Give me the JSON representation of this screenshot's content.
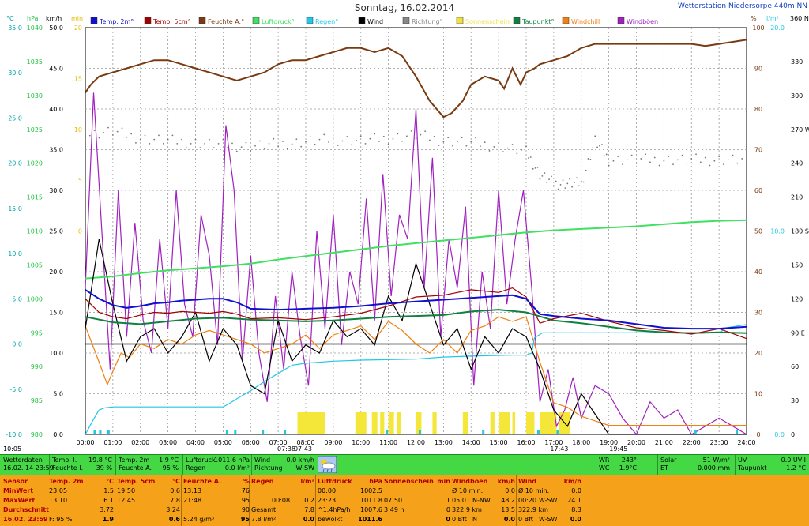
{
  "header": {
    "title": "Sonntag, 16.02.2014",
    "station": "Wetterstation Niedersorpe 440m NN",
    "time_left": "10:05"
  },
  "legend": [
    {
      "label": "Temp. 2m°",
      "color": "#1010d0"
    },
    {
      "label": "Temp. 5cm°",
      "color": "#a00000"
    },
    {
      "label": "Feuchte A.°",
      "color": "#7a3a10"
    },
    {
      "label": "Luftdruck°",
      "color": "#40e060"
    },
    {
      "label": "Regen°",
      "color": "#20c8e8"
    },
    {
      "label": "Wind",
      "color": "#000000"
    },
    {
      "label": "Richtung°",
      "color": "#888888"
    },
    {
      "label": "Sonnenschein",
      "color": "#f0e040"
    },
    {
      "label": "Taupunkt°",
      "color": "#108040"
    },
    {
      "label": "Windchill",
      "color": "#f08010"
    },
    {
      "label": "Windböen",
      "color": "#a020c0"
    }
  ],
  "axes": {
    "c": {
      "unit": "°C",
      "color": "#00a0a0",
      "ticks": [
        "35.0",
        "30.0",
        "25.0",
        "20.0",
        "15.0",
        "10.0",
        "5.0",
        "0.0",
        "-5.0",
        "-10.0"
      ]
    },
    "hpa": {
      "unit": "hPa",
      "color": "#20c040",
      "ticks": [
        "1040",
        "1035",
        "1030",
        "1025",
        "1020",
        "1015",
        "1010",
        "1005",
        "1000",
        "995",
        "990",
        "985",
        "980"
      ]
    },
    "kmh": {
      "unit": "km/h",
      "color": "#000000",
      "ticks": [
        "50.0",
        "45.0",
        "40.0",
        "35.0",
        "30.0",
        "25.0",
        "20.0",
        "15.0",
        "10.0",
        "5.0",
        "0.0"
      ]
    },
    "min": {
      "unit": "min",
      "color": "#e0c000",
      "ticks": [
        "20",
        "15",
        "10",
        "5",
        "0"
      ]
    },
    "pct": {
      "unit": "%",
      "color": "#7a3a10",
      "ticks": [
        "100",
        "90",
        "80",
        "70",
        "60",
        "50",
        "40",
        "30",
        "20",
        "10",
        "0"
      ]
    },
    "lm2": {
      "unit": "l/m²",
      "color": "#20c8e8",
      "ticks": [
        "20.0",
        "10.0",
        "0.0"
      ]
    },
    "deg": {
      "unit": "360 N",
      "color": "#000000",
      "ticks": [
        "360 N",
        "330",
        "300",
        "270 W",
        "240",
        "210",
        "180 S",
        "150",
        "120",
        "90 E",
        "60",
        "30",
        "0"
      ]
    },
    "x": {
      "ticks": [
        "00:00",
        "01:00",
        "02:00",
        "03:00",
        "04:00",
        "05:00",
        "06:00",
        "07:00",
        "08:00",
        "09:00",
        "10:00",
        "11:00",
        "12:00",
        "13:00",
        "14:00",
        "15:00",
        "16:00",
        "17:00",
        "18:00",
        "19:00",
        "20:00",
        "21:00",
        "22:00",
        "23:00",
        "24:00"
      ]
    },
    "sun_labels": [
      "07:38",
      "07:43",
      "17:43",
      "19:45"
    ]
  },
  "chart_data": {
    "type": "line",
    "title": "Sonntag, 16.02.2014",
    "x_unit": "hour",
    "xlim": [
      0,
      24
    ],
    "series": [
      {
        "name": "Feuchte A.",
        "unit": "%",
        "x": [
          0,
          0.2,
          0.5,
          1,
          1.5,
          2,
          2.5,
          3,
          3.5,
          4,
          4.5,
          5,
          5.5,
          6,
          6.5,
          7,
          7.5,
          8,
          8.5,
          9,
          9.5,
          10,
          10.5,
          11,
          11.5,
          12,
          12.5,
          13,
          13.3,
          13.7,
          14,
          14.5,
          15,
          15.2,
          15.5,
          15.8,
          16,
          16.3,
          16.5,
          17,
          17.5,
          18,
          18.5,
          19,
          20,
          21,
          22,
          22.5,
          23,
          23.5,
          24
        ],
        "y": [
          84,
          86,
          88,
          89,
          90,
          91,
          92,
          92,
          91,
          90,
          89,
          88,
          87,
          88,
          89,
          91,
          92,
          92,
          93,
          94,
          95,
          95,
          94,
          95,
          93,
          88,
          82,
          78,
          79,
          82,
          86,
          88,
          87,
          85,
          90,
          86,
          89,
          90,
          91,
          92,
          93,
          95,
          96,
          96,
          96,
          96,
          96,
          95.5,
          96,
          96.5,
          97
        ]
      },
      {
        "name": "Luftdruck",
        "unit": "hPa",
        "x": [
          0,
          1,
          2,
          3,
          4,
          5,
          6,
          7,
          8,
          9,
          10,
          11,
          12,
          13,
          14,
          15,
          16,
          17,
          18,
          19,
          20,
          21,
          22,
          23,
          24
        ],
        "y": [
          1003,
          1003.3,
          1003.8,
          1004.2,
          1004.5,
          1004.8,
          1005.2,
          1005.8,
          1006.3,
          1006.8,
          1007.3,
          1007.8,
          1008.2,
          1008.6,
          1009,
          1009.4,
          1009.8,
          1010.1,
          1010.3,
          1010.5,
          1010.7,
          1011,
          1011.3,
          1011.5,
          1011.6
        ]
      },
      {
        "name": "Temp. 2m",
        "unit": "°C",
        "x": [
          0,
          0.5,
          1,
          1.5,
          2,
          2.5,
          3,
          3.5,
          4,
          4.5,
          5,
          5.5,
          6,
          7,
          8,
          9,
          10,
          11,
          12,
          13,
          14,
          15,
          15.5,
          16,
          16.5,
          17,
          18,
          19,
          20,
          21,
          22,
          23,
          24
        ],
        "y": [
          6,
          5,
          4.3,
          4,
          4.2,
          4.5,
          4.6,
          4.8,
          4.9,
          5,
          5,
          4.6,
          3.9,
          3.8,
          3.9,
          4,
          4.2,
          4.5,
          4.7,
          4.9,
          5.1,
          5.3,
          5.4,
          5,
          3.3,
          3.1,
          2.8,
          2.6,
          2.2,
          1.8,
          1.7,
          1.7,
          1.9
        ]
      },
      {
        "name": "Temp. 5cm",
        "unit": "°C",
        "x": [
          0,
          0.5,
          1,
          1.5,
          2,
          2.5,
          3,
          3.5,
          4,
          4.5,
          5,
          5.5,
          6,
          7,
          8,
          9,
          10,
          11,
          12,
          13,
          14,
          15,
          15.5,
          16,
          16.5,
          17,
          18,
          19,
          20,
          21,
          22,
          23,
          24
        ],
        "y": [
          5,
          3.5,
          3,
          2.8,
          3.2,
          3.5,
          3.4,
          3.6,
          3.5,
          3.4,
          3.6,
          3.3,
          2.8,
          2.9,
          2.7,
          3,
          3.4,
          4.2,
          5.2,
          5.4,
          6,
          5.7,
          6.2,
          5.2,
          2.3,
          2.8,
          3.4,
          2.5,
          1.8,
          1.5,
          1.1,
          1.7,
          0.6
        ]
      },
      {
        "name": "Taupunkt",
        "unit": "°C",
        "x": [
          0,
          1,
          2,
          3,
          4,
          5,
          6,
          7,
          8,
          9,
          10,
          11,
          12,
          13,
          14,
          15,
          16,
          17,
          18,
          19,
          20,
          21,
          22,
          23,
          24
        ],
        "y": [
          3,
          2.4,
          2.2,
          2.5,
          2.8,
          2.9,
          2.7,
          2.6,
          2.5,
          2.6,
          2.8,
          3,
          3.1,
          3.2,
          3.6,
          3.8,
          3.5,
          2.6,
          2.3,
          1.9,
          1.5,
          1.3,
          1.2,
          1.3,
          1.2
        ]
      },
      {
        "name": "Windchill",
        "unit": "°C",
        "x": [
          0,
          0.5,
          0.8,
          1,
          1.3,
          1.6,
          2,
          2.5,
          3,
          3.5,
          4,
          4.5,
          5,
          5.5,
          6,
          6.5,
          7,
          7.5,
          8,
          8.5,
          9,
          9.5,
          10,
          10.5,
          11,
          11.5,
          12,
          12.5,
          13,
          13.5,
          14,
          14.5,
          15,
          15.5,
          16,
          16.5,
          17,
          17.5,
          18,
          19,
          20,
          21,
          22,
          23,
          24
        ],
        "y": [
          2,
          -2,
          -4.5,
          -3,
          -1,
          -1.5,
          0,
          -0.5,
          0.5,
          0,
          1,
          1.5,
          1,
          0.5,
          0,
          -1,
          -0.5,
          0,
          1,
          -0.5,
          1,
          1.5,
          2,
          0.5,
          2.5,
          1.5,
          0,
          -1,
          0.5,
          -1,
          1.5,
          2,
          3,
          2.5,
          3,
          -2,
          -6.5,
          -7,
          -8,
          -9,
          -9,
          -9,
          -9,
          -9,
          -9
        ]
      },
      {
        "name": "Regen",
        "unit": "l/m²",
        "x": [
          0,
          0.3,
          0.5,
          0.7,
          1,
          5,
          5.2,
          5.5,
          6,
          6.5,
          7,
          7.5,
          8,
          9,
          10,
          12,
          13,
          14,
          15.5,
          16,
          16.2,
          16.3,
          16.6,
          20,
          22,
          23,
          23.3,
          24
        ],
        "y": [
          0,
          1.5,
          2.4,
          2.6,
          2.7,
          2.7,
          3,
          3.5,
          4.3,
          5.2,
          6,
          6.8,
          7.0,
          7.2,
          7.3,
          7.4,
          7.6,
          7.7,
          7.8,
          7.8,
          8,
          9.5,
          10,
          10,
          10,
          10,
          10.5,
          10.8
        ]
      },
      {
        "name": "Wind",
        "unit": "km/h",
        "x": [
          0,
          0.5,
          1,
          1.5,
          2,
          2.5,
          3,
          3.5,
          4,
          4.5,
          5,
          5.5,
          6,
          6.5,
          7,
          7.5,
          8,
          8.5,
          9,
          9.5,
          10,
          10.5,
          11,
          11.5,
          12,
          12.5,
          13,
          13.5,
          14,
          14.5,
          15,
          15.5,
          16,
          16.5,
          17,
          17.5,
          18,
          19,
          20,
          21,
          22,
          23,
          24
        ],
        "y": [
          13,
          24,
          16,
          9,
          12,
          13,
          10,
          12,
          15,
          9,
          13,
          11,
          6,
          5,
          14,
          9,
          11,
          10,
          14,
          12,
          13,
          11,
          17,
          14,
          21,
          16,
          11,
          13,
          8,
          12,
          10,
          13,
          12,
          8,
          3,
          1,
          5,
          0,
          0,
          0,
          0,
          0,
          0
        ]
      },
      {
        "name": "Richtung",
        "unit": "°",
        "x": [
          0,
          1,
          2,
          3,
          4,
          5,
          6,
          7,
          8,
          9,
          10,
          11,
          12,
          13,
          14,
          15,
          16,
          16.5,
          17,
          17.5,
          18,
          18.5,
          19,
          20,
          21,
          22,
          23,
          24
        ],
        "y": [
          265,
          268,
          262,
          260,
          258,
          256,
          255,
          257,
          259,
          261,
          260,
          262,
          265,
          260,
          258,
          255,
          250,
          230,
          222,
          222,
          222,
          260,
          243,
          243,
          243,
          243,
          243,
          243
        ]
      },
      {
        "name": "Windböen",
        "unit": "km/h",
        "x": [
          0,
          0.3,
          0.6,
          0.9,
          1.2,
          1.5,
          1.8,
          2.1,
          2.4,
          2.7,
          3,
          3.3,
          3.6,
          3.9,
          4.2,
          4.5,
          4.8,
          5.1,
          5.4,
          5.7,
          6,
          6.3,
          6.6,
          6.9,
          7.2,
          7.5,
          7.8,
          8.1,
          8.4,
          8.7,
          9,
          9.3,
          9.6,
          9.9,
          10.2,
          10.5,
          10.8,
          11.1,
          11.4,
          11.7,
          12,
          12.3,
          12.6,
          12.9,
          13.2,
          13.5,
          13.8,
          14.1,
          14.4,
          14.7,
          15,
          15.3,
          15.6,
          15.9,
          16.2,
          16.5,
          16.8,
          17.1,
          17.4,
          17.7,
          18,
          18.5,
          19,
          19.5,
          20,
          20.5,
          21,
          21.5,
          22,
          22.5,
          23,
          23.5,
          24
        ],
        "y": [
          18,
          42,
          25,
          8,
          30,
          12,
          26,
          14,
          10,
          24,
          13,
          30,
          16,
          12,
          27,
          22,
          11,
          38,
          30,
          9,
          22,
          10,
          4,
          17,
          8,
          20,
          12,
          6,
          25,
          13,
          27,
          11,
          20,
          16,
          29,
          14,
          32,
          17,
          27,
          24,
          40,
          18,
          34,
          12,
          24,
          18,
          28,
          6,
          20,
          13,
          30,
          16,
          24,
          30,
          18,
          4,
          8,
          1,
          3,
          7,
          2,
          6,
          5,
          2,
          0,
          4,
          2,
          3,
          0,
          1,
          2,
          1,
          0
        ]
      }
    ],
    "sunshine_blocks": [
      [
        7.7,
        8.7
      ],
      [
        9.8,
        10.2
      ],
      [
        10.4,
        10.6
      ],
      [
        10.7,
        10.85
      ],
      [
        11,
        11.2
      ],
      [
        11.3,
        11.45
      ],
      [
        12,
        12.2
      ],
      [
        12.6,
        12.75
      ],
      [
        13.7,
        13.9
      ],
      [
        14.7,
        14.85
      ],
      [
        15,
        15.4
      ],
      [
        15.5,
        15.6
      ],
      [
        16,
        16.3
      ],
      [
        16.5,
        17.1
      ],
      [
        17.2,
        17.6
      ]
    ]
  },
  "current": {
    "title1": "Wetterdaten",
    "title2": "16.02. 14 23:59",
    "temp_i_label": "Temp. I.",
    "temp_i_val": "19.8 °C",
    "feuchte_i_label": "Feuchte I.",
    "feuchte_i_val": "39 %",
    "temp2m_label": "Temp. 2m",
    "temp2m_val": "1.9 °C",
    "feuchte_a_label": "Feuchte A.",
    "feuchte_a_val": "95 %",
    "luftdruck_label": "Luftdruck",
    "luftdruck_val": "1011.6 hPa",
    "regen_label": "Regen",
    "regen_val": "0.0 l/m²",
    "wind_label": "Wind",
    "wind_val": "0.0 km/h",
    "richtung_label": "Richtung",
    "richtung_val": "W-SW",
    "wr_label": "WR",
    "wr_val": "243°",
    "wc_label": "WC",
    "wc_val": "1.9°C",
    "solar_label": "Solar",
    "solar_val": "51 W/m²",
    "et_label": "ET",
    "et_val": "0.000 mm",
    "uv_label": "UV",
    "uv_val": "0.0 UV-I",
    "taupunkt_label": "Taupunkt",
    "taupunkt_val": "1.2 °C"
  },
  "stats": {
    "row_labels": [
      "Sensor",
      "MinWert",
      "MaxWert",
      "Durchschnitt",
      "16.02. 23:59"
    ],
    "temp2m": {
      "title": "Temp. 2m",
      "unit": "°C",
      "rows": [
        [
          "23:05",
          "1.5"
        ],
        [
          "13:10",
          "6.1"
        ],
        [
          "",
          "3.72"
        ],
        [
          "F: 95 %",
          "1.9"
        ]
      ]
    },
    "temp5cm": {
      "title": "Temp. 5cm",
      "unit": "°C",
      "rows": [
        [
          "19:50",
          "0.6"
        ],
        [
          "12:45",
          "7.8"
        ],
        [
          "",
          "3.24"
        ],
        [
          "",
          "0.6"
        ]
      ]
    },
    "feuchte": {
      "title": "Feuchte A.",
      "unit": "%",
      "rows": [
        [
          "13:13",
          "76"
        ],
        [
          "21:48",
          "95"
        ],
        [
          "",
          "90"
        ],
        [
          "5.24 g/m³",
          "95"
        ]
      ]
    },
    "regen": {
      "title": "Regen",
      "unit": "l/m²",
      "rows": [
        [
          "",
          "00:08",
          "0.2"
        ],
        [
          "Gesamt:",
          "",
          "7.8"
        ],
        [
          "7.8 l/m²",
          "",
          "0.0"
        ]
      ]
    },
    "luftdruck": {
      "title": "Luftdruck",
      "unit": "hPa",
      "rows": [
        [
          "00:00",
          "1002.5"
        ],
        [
          "23:23",
          "1011.8"
        ],
        [
          "^1.4hPa/h",
          "1007.6"
        ],
        [
          "bewölkt",
          "1011.6"
        ]
      ]
    },
    "sonne": {
      "title": "Sonnenschein",
      "unit": "min",
      "rows": [
        [
          "07:50",
          "1"
        ],
        [
          "3:49 h",
          "0"
        ],
        [
          "",
          "0"
        ]
      ]
    },
    "boeen": {
      "title": "Windböen",
      "unit": "km/h",
      "rows": [
        [
          "Ø 10 min.",
          "",
          "0.0"
        ],
        [
          "05:01",
          "N-NW",
          "48.2"
        ],
        [
          "322.9 km",
          "",
          "13.5"
        ],
        [
          "0 Bft",
          "N",
          "0.0"
        ]
      ]
    },
    "wind": {
      "title": "Wind",
      "unit": "km/h",
      "rows": [
        [
          "Ø 10 min.",
          "",
          "0.0"
        ],
        [
          "00:20",
          "W-SW",
          "24.1"
        ],
        [
          "322.9 km",
          "",
          "8.3"
        ],
        [
          "0 Bft",
          "W-SW",
          "0.0"
        ]
      ]
    }
  }
}
